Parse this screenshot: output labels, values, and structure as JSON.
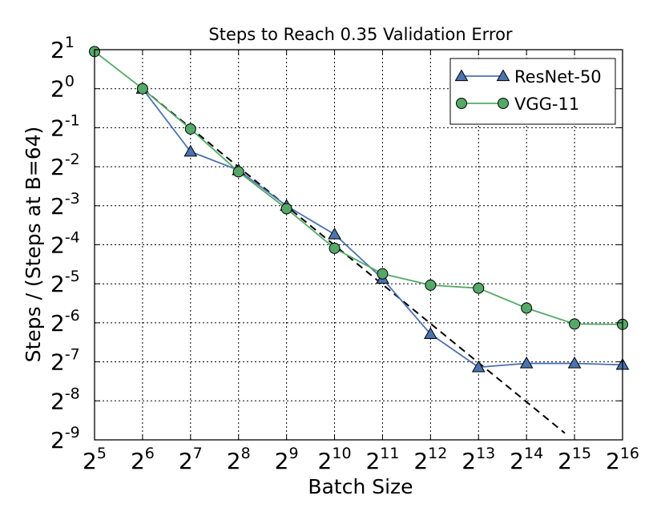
{
  "chart_data": {
    "type": "line",
    "title": "Steps to Reach 0.35 Validation Error",
    "xlabel": "Batch Size",
    "ylabel": "Steps / (Steps at B=64)",
    "x_scale": "log2",
    "y_scale": "log2",
    "xlim": [
      32,
      65536
    ],
    "ylim": [
      0.001953125,
      2
    ],
    "grid": true,
    "legend_position": "top-right",
    "x_ticks": [
      {
        "base": "2",
        "exp": "5"
      },
      {
        "base": "2",
        "exp": "6"
      },
      {
        "base": "2",
        "exp": "7"
      },
      {
        "base": "2",
        "exp": "8"
      },
      {
        "base": "2",
        "exp": "9"
      },
      {
        "base": "2",
        "exp": "10"
      },
      {
        "base": "2",
        "exp": "11"
      },
      {
        "base": "2",
        "exp": "12"
      },
      {
        "base": "2",
        "exp": "13"
      },
      {
        "base": "2",
        "exp": "14"
      },
      {
        "base": "2",
        "exp": "15"
      },
      {
        "base": "2",
        "exp": "16"
      }
    ],
    "y_ticks": [
      {
        "base": "2",
        "exp": "1"
      },
      {
        "base": "2",
        "exp": "0"
      },
      {
        "base": "2",
        "exp": "-1"
      },
      {
        "base": "2",
        "exp": "-2"
      },
      {
        "base": "2",
        "exp": "-3"
      },
      {
        "base": "2",
        "exp": "-4"
      },
      {
        "base": "2",
        "exp": "-5"
      },
      {
        "base": "2",
        "exp": "-6"
      },
      {
        "base": "2",
        "exp": "-7"
      },
      {
        "base": "2",
        "exp": "-8"
      },
      {
        "base": "2",
        "exp": "-9"
      }
    ],
    "series": [
      {
        "name": "ResNet-50",
        "color": "#4c72b0",
        "marker": "triangle",
        "x": [
          64,
          128,
          256,
          512,
          1024,
          2048,
          4096,
          8192,
          16384,
          32768,
          65536
        ],
        "y": [
          1,
          0.327,
          0.235,
          0.1248,
          0.0752,
          0.0342,
          0.0128,
          0.0071,
          0.0076,
          0.0076,
          0.0074
        ]
      },
      {
        "name": "VGG-11",
        "color": "#55a868",
        "marker": "circle",
        "x": [
          32,
          64,
          128,
          256,
          512,
          1024,
          2048,
          4096,
          8192,
          16384,
          32768,
          65536
        ],
        "y": [
          1.935,
          1,
          0.4891,
          0.2286,
          0.1186,
          0.0587,
          0.0373,
          0.0305,
          0.0289,
          0.0203,
          0.0153,
          0.0152
        ]
      }
    ],
    "reference_line": {
      "style": "dashed",
      "color": "#000000",
      "x": [
        64,
        28500
      ],
      "y": [
        1,
        0.0022
      ]
    }
  }
}
